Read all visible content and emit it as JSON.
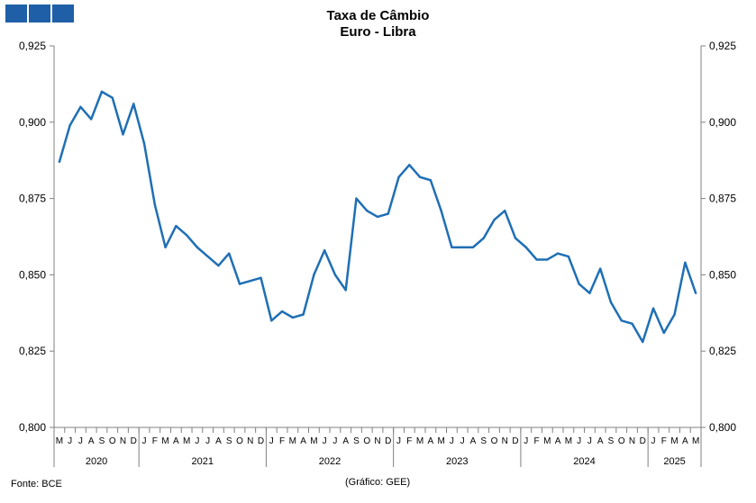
{
  "header": {
    "title": "Taxa de Câmbio",
    "subtitle": "Euro - Libra",
    "logo_color": "#1f5fa8"
  },
  "footer": {
    "source": "Fonte: BCE",
    "credit": "(Gráfico: GEE)"
  },
  "chart_data": {
    "type": "line",
    "title": "Taxa de Câmbio",
    "subtitle": "Euro - Libra",
    "ylim": [
      0.8,
      0.925
    ],
    "y_ticks": [
      "0,800",
      "0,825",
      "0,850",
      "0,875",
      "0,900",
      "0,925"
    ],
    "secondary_y_axis": true,
    "grid": false,
    "line_color": "#1f6fb5",
    "x": [
      "M",
      "J",
      "J",
      "A",
      "S",
      "O",
      "N",
      "D",
      "J",
      "F",
      "M",
      "A",
      "M",
      "J",
      "J",
      "A",
      "S",
      "O",
      "N",
      "D",
      "J",
      "F",
      "M",
      "A",
      "M",
      "J",
      "J",
      "A",
      "S",
      "O",
      "N",
      "D",
      "J",
      "F",
      "M",
      "A",
      "M",
      "J",
      "J",
      "A",
      "S",
      "O",
      "N",
      "D",
      "J",
      "F",
      "M",
      "A",
      "M",
      "J",
      "J",
      "A",
      "S",
      "O",
      "N",
      "D",
      "J",
      "F",
      "M",
      "A",
      "M"
    ],
    "years": [
      {
        "label": "2020",
        "months": 8
      },
      {
        "label": "2021",
        "months": 12
      },
      {
        "label": "2022",
        "months": 12
      },
      {
        "label": "2023",
        "months": 12
      },
      {
        "label": "2024",
        "months": 12
      },
      {
        "label": "2025",
        "months": 5
      }
    ],
    "series": [
      {
        "values": [
          0.887,
          0.899,
          0.905,
          0.901,
          0.91,
          0.908,
          0.896,
          0.906,
          0.893,
          0.873,
          0.859,
          0.866,
          0.863,
          0.859,
          0.856,
          0.853,
          0.857,
          0.847,
          0.848,
          0.849,
          0.835,
          0.838,
          0.836,
          0.837,
          0.85,
          0.858,
          0.85,
          0.845,
          0.875,
          0.871,
          0.869,
          0.87,
          0.882,
          0.886,
          0.882,
          0.881,
          0.871,
          0.859,
          0.859,
          0.859,
          0.862,
          0.868,
          0.871,
          0.862,
          0.859,
          0.855,
          0.855,
          0.857,
          0.856,
          0.847,
          0.844,
          0.852,
          0.841,
          0.835,
          0.834,
          0.828,
          0.839,
          0.831,
          0.837,
          0.854,
          0.844
        ]
      }
    ]
  }
}
